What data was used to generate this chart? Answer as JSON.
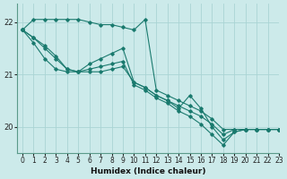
{
  "xlabel": "Humidex (Indice chaleur)",
  "bg_color": "#cceaea",
  "line_color": "#1a7a6e",
  "grid_color": "#aad4d4",
  "xlim": [
    -0.5,
    23
  ],
  "ylim": [
    19.5,
    22.35
  ],
  "yticks": [
    20,
    21,
    22
  ],
  "xticks": [
    0,
    1,
    2,
    3,
    4,
    5,
    6,
    7,
    8,
    9,
    10,
    11,
    12,
    13,
    14,
    15,
    16,
    17,
    18,
    19,
    20,
    21,
    22,
    23
  ],
  "series": [
    [
      21.85,
      22.05,
      22.05,
      22.05,
      22.05,
      22.05,
      22.0,
      21.95,
      21.95,
      21.9,
      21.85,
      22.05,
      20.7,
      20.6,
      20.5,
      20.4,
      20.3,
      20.15,
      19.95,
      19.95,
      19.95,
      19.95,
      19.95,
      19.95
    ],
    [
      21.85,
      21.7,
      21.55,
      21.35,
      21.1,
      21.05,
      21.05,
      21.05,
      21.1,
      21.15,
      20.85,
      20.75,
      20.6,
      20.5,
      20.4,
      20.3,
      20.2,
      20.05,
      19.85,
      19.95,
      19.95,
      19.95,
      19.95,
      19.95
    ],
    [
      21.85,
      21.7,
      21.5,
      21.3,
      21.1,
      21.05,
      21.2,
      21.3,
      21.4,
      21.5,
      20.85,
      20.75,
      20.6,
      20.5,
      20.35,
      20.6,
      20.35,
      20.0,
      19.75,
      19.9,
      19.95,
      19.95,
      19.95,
      19.95
    ],
    [
      21.85,
      21.6,
      21.3,
      21.1,
      21.05,
      21.05,
      21.1,
      21.15,
      21.2,
      21.25,
      20.8,
      20.7,
      20.55,
      20.45,
      20.3,
      20.2,
      20.05,
      19.85,
      19.65,
      19.9,
      19.95,
      19.95,
      19.95,
      19.95
    ]
  ]
}
